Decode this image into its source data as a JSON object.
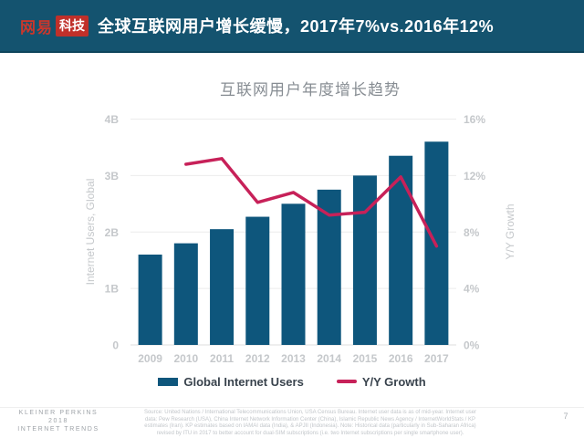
{
  "header": {
    "logo_brand": "网易",
    "logo_suffix": "科技",
    "title": "全球互联网用户增长缓慢，2017年7%vs.2016年12%"
  },
  "chart": {
    "title": "互联网用户年度增长趋势",
    "left_axis": {
      "label": "Internet Users, Global",
      "ticks": [
        "4B",
        "3B",
        "2B",
        "1B",
        "0"
      ]
    },
    "right_axis": {
      "label": "Y/Y Growth",
      "ticks": [
        "16%",
        "12%",
        "8%",
        "4%",
        "0%"
      ]
    },
    "legend": [
      {
        "label": "Global Internet Users",
        "type": "bar"
      },
      {
        "label": "Y/Y Growth",
        "type": "line"
      }
    ]
  },
  "chart_data": {
    "type": "bar",
    "title": "互联网用户年度增长趋势",
    "categories": [
      "2009",
      "2010",
      "2011",
      "2012",
      "2013",
      "2014",
      "2015",
      "2016",
      "2017"
    ],
    "series": [
      {
        "name": "Global Internet Users",
        "type": "bar",
        "axis": "left",
        "unit": "B",
        "values": [
          1.6,
          1.8,
          2.05,
          2.27,
          2.5,
          2.75,
          3.0,
          3.35,
          3.6
        ]
      },
      {
        "name": "Y/Y Growth",
        "type": "line",
        "axis": "right",
        "unit": "%",
        "values": [
          null,
          12.8,
          13.2,
          10.1,
          10.8,
          9.2,
          9.4,
          11.9,
          7.0
        ]
      }
    ],
    "left_ylabel": "Internet Users, Global",
    "right_ylabel": "Y/Y Growth",
    "left_ylim": [
      0,
      4
    ],
    "right_ylim": [
      0,
      16
    ],
    "grid": true,
    "legend_position": "bottom"
  },
  "footer": {
    "brand_lines": [
      "KLEINER PERKINS",
      "2018",
      "INTERNET TRENDS"
    ],
    "source": "Source: United Nations / International Telecommunications Union, USA Census Bureau. Internet user data is as of mid-year. Internet user data: Pew Research (USA), China Internet Network Information Center (China), Islamic Republic News Agency / InternetWorldStats / KP estimates (Iran). KP estimates based on IAMAI data (India), & APJII (Indonesia). Note: Historical data (particularly in Sub-Saharan Africa) revised by ITU in 2017 to better account for dual-SIM subscriptions (i.e. two Internet subscriptions per single smartphone user).",
    "page_number": "7"
  },
  "colors": {
    "header_bg": "#14536F",
    "logo_red": "#C0302A",
    "bar": "#0E567C",
    "line": "#C72159",
    "grid": "#ECECEC",
    "baseline": "#DCDCDC",
    "axis_text": "#C5C8CB",
    "title_text": "#878D93"
  }
}
